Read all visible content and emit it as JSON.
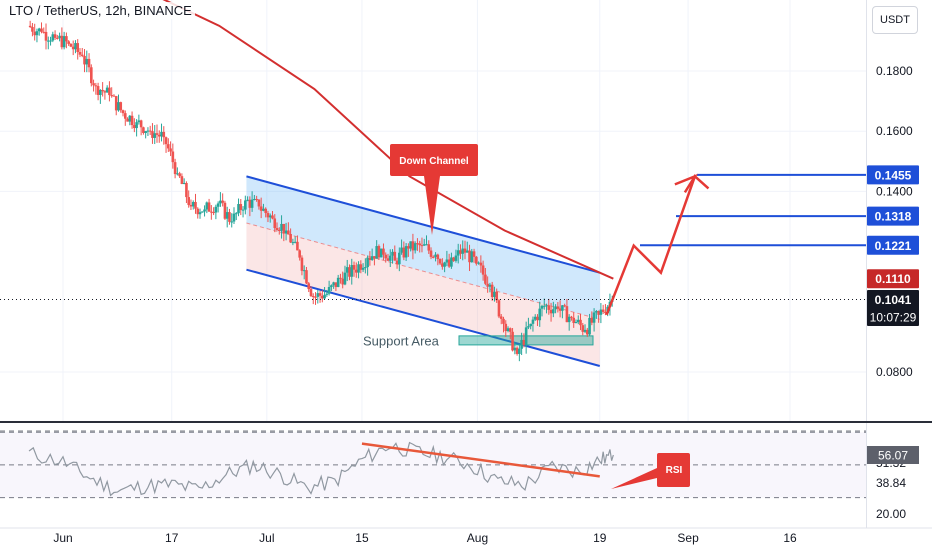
{
  "header": {
    "title": "LTO / TetherUS, 12h, BINANCE",
    "currency": "USDT"
  },
  "chart_data": [
    {
      "type": "candlestick",
      "title": "LTO / TetherUS, 12h, BINANCE",
      "price_axis": {
        "ticks": [
          0.08,
          0.16,
          0.18
        ],
        "tick_labels": [
          "0.0800",
          "0.1600",
          "0.1800"
        ],
        "partially_hidden_ticks": [
          "0.1400"
        ]
      },
      "time_axis": {
        "ticks": [
          "2023-06-01",
          "2023-06-17",
          "2023-07-01",
          "2023-07-15",
          "2023-08-01",
          "2023-08-19",
          "2023-09-01",
          "2023-09-16"
        ],
        "tick_labels": [
          "Jun",
          "17",
          "Jul",
          "15",
          "Aug",
          "19",
          "Sep",
          "16"
        ]
      },
      "ohlc_closes": [
        {
          "t": "2023-05-27",
          "close": 0.195
        },
        {
          "t": "2023-05-29",
          "close": 0.193
        },
        {
          "t": "2023-05-31",
          "close": 0.191
        },
        {
          "t": "2023-06-02",
          "close": 0.189
        },
        {
          "t": "2023-06-04",
          "close": 0.185
        },
        {
          "t": "2023-06-06",
          "close": 0.175
        },
        {
          "t": "2023-06-08",
          "close": 0.172
        },
        {
          "t": "2023-06-10",
          "close": 0.166
        },
        {
          "t": "2023-06-12",
          "close": 0.163
        },
        {
          "t": "2023-06-14",
          "close": 0.16
        },
        {
          "t": "2023-06-16",
          "close": 0.158
        },
        {
          "t": "2023-06-18",
          "close": 0.146
        },
        {
          "t": "2023-06-20",
          "close": 0.135
        },
        {
          "t": "2023-06-22",
          "close": 0.134
        },
        {
          "t": "2023-06-24",
          "close": 0.136
        },
        {
          "t": "2023-06-26",
          "close": 0.13
        },
        {
          "t": "2023-06-28",
          "close": 0.137
        },
        {
          "t": "2023-06-30",
          "close": 0.135
        },
        {
          "t": "2023-07-02",
          "close": 0.131
        },
        {
          "t": "2023-07-04",
          "close": 0.127
        },
        {
          "t": "2023-07-06",
          "close": 0.118
        },
        {
          "t": "2023-07-08",
          "close": 0.105
        },
        {
          "t": "2023-07-10",
          "close": 0.106
        },
        {
          "t": "2023-07-12",
          "close": 0.111
        },
        {
          "t": "2023-07-14",
          "close": 0.114
        },
        {
          "t": "2023-07-16",
          "close": 0.118
        },
        {
          "t": "2023-07-18",
          "close": 0.121
        },
        {
          "t": "2023-07-20",
          "close": 0.117
        },
        {
          "t": "2023-07-22",
          "close": 0.121
        },
        {
          "t": "2023-07-24",
          "close": 0.122
        },
        {
          "t": "2023-07-26",
          "close": 0.119
        },
        {
          "t": "2023-07-28",
          "close": 0.115
        },
        {
          "t": "2023-07-30",
          "close": 0.121
        },
        {
          "t": "2023-08-01",
          "close": 0.116
        },
        {
          "t": "2023-08-03",
          "close": 0.109
        },
        {
          "t": "2023-08-05",
          "close": 0.096
        },
        {
          "t": "2023-08-07",
          "close": 0.086
        },
        {
          "t": "2023-08-09",
          "close": 0.096
        },
        {
          "t": "2023-08-11",
          "close": 0.102
        },
        {
          "t": "2023-08-13",
          "close": 0.101
        },
        {
          "t": "2023-08-15",
          "close": 0.098
        },
        {
          "t": "2023-08-17",
          "close": 0.094
        },
        {
          "t": "2023-08-19",
          "close": 0.099
        },
        {
          "t": "2023-08-21",
          "close": 0.1041
        }
      ],
      "moving_average": {
        "color": "#d32f2f",
        "values": [
          {
            "t": "2023-05-27",
            "v": 0.223
          },
          {
            "t": "2023-06-10",
            "v": 0.21
          },
          {
            "t": "2023-06-24",
            "v": 0.195
          },
          {
            "t": "2023-07-08",
            "v": 0.174
          },
          {
            "t": "2023-07-22",
            "v": 0.145
          },
          {
            "t": "2023-08-05",
            "v": 0.127
          },
          {
            "t": "2023-08-21",
            "v": 0.111
          }
        ]
      },
      "price_labels": [
        {
          "value": 0.1455,
          "text": "0.1455",
          "color": "#1e4fd8"
        },
        {
          "value": 0.1318,
          "text": "0.1318",
          "color": "#1e4fd8"
        },
        {
          "value": 0.1221,
          "text": "0.1221",
          "color": "#1e4fd8"
        },
        {
          "value": 0.111,
          "text": "0.1110",
          "color": "#c62828"
        },
        {
          "value": 0.1041,
          "text": "0.1041",
          "color": "#131722"
        }
      ],
      "countdown": "10:07:29",
      "annotations": {
        "channel_label": "Down Channel",
        "support_label": "Support Area",
        "channel_upper": [
          {
            "t": "2023-06-28",
            "v": 0.145
          },
          {
            "t": "2023-08-19",
            "v": 0.113
          }
        ],
        "channel_lower": [
          {
            "t": "2023-06-28",
            "v": 0.114
          },
          {
            "t": "2023-08-19",
            "v": 0.082
          }
        ],
        "support_zone": [
          0.089,
          0.092
        ],
        "target_levels": [
          0.1221,
          0.1318,
          0.1455
        ],
        "projection_path": [
          {
            "t": "2023-08-20",
            "v": 0.099
          },
          {
            "t": "2023-08-24",
            "v": 0.122
          },
          {
            "t": "2023-08-28",
            "v": 0.113
          },
          {
            "t": "2023-09-02",
            "v": 0.145
          },
          {
            "t": "2023-09-04",
            "v": 0.141
          }
        ]
      },
      "colors": {
        "up": "#26a69a",
        "down": "#ef5350",
        "channel": "#1e4fd8",
        "annotation_red": "#e53935"
      }
    },
    {
      "type": "line",
      "title": "",
      "ylim": [
        20,
        80
      ],
      "tick_labels": [
        "20.00",
        "38.84",
        "51.32",
        "56.07"
      ],
      "levels": [
        70,
        50,
        30
      ],
      "current_value": 56.07,
      "label": "RSI",
      "values": [
        {
          "t": "2023-05-27",
          "v": 57
        },
        {
          "t": "2023-06-01",
          "v": 52
        },
        {
          "t": "2023-06-05",
          "v": 42
        },
        {
          "t": "2023-06-09",
          "v": 34
        },
        {
          "t": "2023-06-13",
          "v": 37
        },
        {
          "t": "2023-06-17",
          "v": 38
        },
        {
          "t": "2023-06-21",
          "v": 35
        },
        {
          "t": "2023-06-25",
          "v": 44
        },
        {
          "t": "2023-06-29",
          "v": 50
        },
        {
          "t": "2023-07-03",
          "v": 44
        },
        {
          "t": "2023-07-07",
          "v": 36
        },
        {
          "t": "2023-07-11",
          "v": 40
        },
        {
          "t": "2023-07-15",
          "v": 53
        },
        {
          "t": "2023-07-19",
          "v": 62
        },
        {
          "t": "2023-07-23",
          "v": 58
        },
        {
          "t": "2023-07-27",
          "v": 55
        },
        {
          "t": "2023-07-31",
          "v": 50
        },
        {
          "t": "2023-08-04",
          "v": 40
        },
        {
          "t": "2023-08-08",
          "v": 38
        },
        {
          "t": "2023-08-12",
          "v": 49
        },
        {
          "t": "2023-08-16",
          "v": 46
        },
        {
          "t": "2023-08-19",
          "v": 53
        },
        {
          "t": "2023-08-21",
          "v": 56.07
        }
      ],
      "divergence_line": [
        {
          "t": "2023-07-15",
          "v": 63
        },
        {
          "t": "2023-08-19",
          "v": 43
        }
      ]
    }
  ]
}
